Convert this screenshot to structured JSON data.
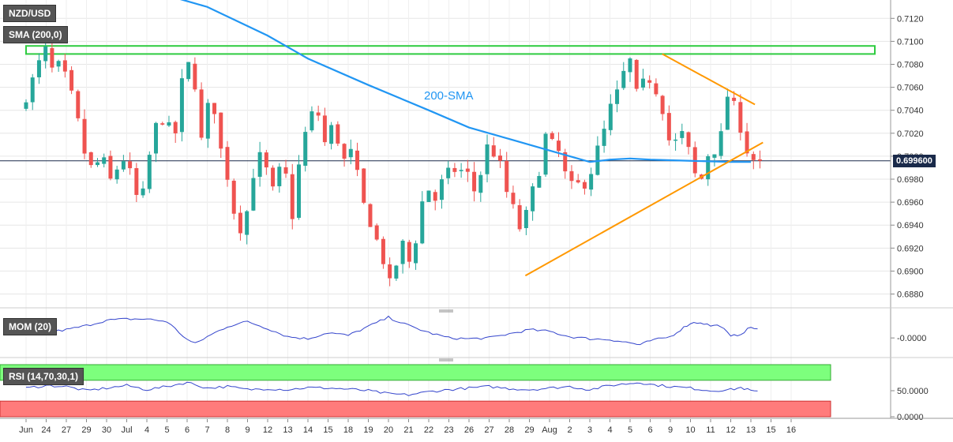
{
  "chart": {
    "panel_labels": {
      "main": "NZD/USD",
      "sma": "SMA (200,0)",
      "mom": "MOM (20)",
      "rsi": "RSI (14,70,30,1)"
    },
    "annotation": "200-SMA",
    "last_price_label": "0.699600",
    "colors": {
      "up": "#26a69a",
      "down": "#ef5350",
      "sma": "#2196f3",
      "trendline": "#ff9800",
      "resistance_box": "#2ecc40",
      "indicator": "#3344cc",
      "overbought": "#7dff7d",
      "oversold": "#ff7b7b"
    }
  },
  "chart_data": [
    {
      "type": "candlestick",
      "series_name": "NZD/USD",
      "y_ticks": [
        "0.6880",
        "0.6900",
        "0.6920",
        "0.6940",
        "0.6960",
        "0.6980",
        "0.7000",
        "0.7020",
        "0.7040",
        "0.7060",
        "0.7080",
        "0.7100",
        "0.7120"
      ],
      "x_ticks": [
        "Jun",
        "24",
        "27",
        "29",
        "30",
        "Jul",
        "4",
        "5",
        "6",
        "7",
        "8",
        "9",
        "12",
        "13",
        "14",
        "15",
        "18",
        "19",
        "20",
        "21",
        "22",
        "23",
        "26",
        "27",
        "28",
        "29",
        "Aug",
        "2",
        "3",
        "4",
        "5",
        "6",
        "9",
        "10",
        "11",
        "12",
        "13",
        "15",
        "16"
      ],
      "ylim": [
        0.6868,
        0.7136
      ],
      "last_price": 0.6996,
      "sma200": [
        [
          0,
          0.7165
        ],
        [
          6,
          0.7145
        ],
        [
          9,
          0.713
        ],
        [
          12,
          0.7105
        ],
        [
          14,
          0.7085
        ],
        [
          17,
          0.7062
        ],
        [
          20,
          0.704
        ],
        [
          22,
          0.7025
        ],
        [
          24,
          0.7015
        ],
        [
          26,
          0.7005
        ],
        [
          27,
          0.7
        ],
        [
          28,
          0.6995
        ],
        [
          29,
          0.6997
        ],
        [
          30,
          0.6998
        ],
        [
          31,
          0.6997
        ],
        [
          33,
          0.6996
        ],
        [
          35,
          0.6995
        ],
        [
          36,
          0.6995
        ]
      ],
      "levels": {
        "resistance_zone": [
          0.7089,
          0.7096
        ],
        "upper_trendline": {
          "from": [
            31.6,
            0.7089
          ],
          "to": [
            36.2,
            0.7045
          ]
        },
        "lower_trendline": {
          "from": [
            24.8,
            0.6896
          ],
          "to": [
            36.6,
            0.7012
          ]
        }
      },
      "anchors": [
        [
          0,
          0.704
        ],
        [
          0.7,
          0.7068
        ],
        [
          1.0,
          0.7082
        ],
        [
          1.3,
          0.7092
        ],
        [
          1.7,
          0.707
        ],
        [
          2.0,
          0.708
        ],
        [
          2.5,
          0.7058
        ],
        [
          3.0,
          0.7022
        ],
        [
          3.3,
          0.6997
        ],
        [
          3.6,
          0.6988
        ],
        [
          4.1,
          0.6999
        ],
        [
          4.5,
          0.6978
        ],
        [
          5.0,
          0.6995
        ],
        [
          5.3,
          0.7
        ],
        [
          5.6,
          0.6975
        ],
        [
          6.0,
          0.6955
        ],
        [
          6.3,
          0.6982
        ],
        [
          6.6,
          0.7018
        ],
        [
          7.0,
          0.7035
        ],
        [
          7.4,
          0.7025
        ],
        [
          7.6,
          0.701
        ],
        [
          7.9,
          0.7032
        ],
        [
          8.1,
          0.707
        ],
        [
          8.25,
          0.7088
        ],
        [
          8.4,
          0.7078
        ],
        [
          8.7,
          0.7065
        ],
        [
          9.0,
          0.701
        ],
        [
          9.3,
          0.704
        ],
        [
          9.6,
          0.705
        ],
        [
          10.0,
          0.7005
        ],
        [
          10.4,
          0.6978
        ],
        [
          10.6,
          0.6955
        ],
        [
          10.9,
          0.694
        ],
        [
          11.1,
          0.6935
        ],
        [
          11.4,
          0.6962
        ],
        [
          11.7,
          0.6995
        ],
        [
          12.0,
          0.7
        ],
        [
          12.3,
          0.6985
        ],
        [
          12.6,
          0.6968
        ],
        [
          12.8,
          0.698
        ],
        [
          13.1,
          0.6998
        ],
        [
          13.4,
          0.696
        ],
        [
          13.6,
          0.6945
        ],
        [
          13.8,
          0.6985
        ],
        [
          14.2,
          0.702
        ],
        [
          14.6,
          0.704
        ],
        [
          14.9,
          0.7035
        ],
        [
          15.2,
          0.7008
        ],
        [
          15.5,
          0.7025
        ],
        [
          15.8,
          0.7015
        ],
        [
          16.1,
          0.6995
        ],
        [
          16.4,
          0.7005
        ],
        [
          16.7,
          0.699
        ],
        [
          17.0,
          0.696
        ],
        [
          17.3,
          0.695
        ],
        [
          17.7,
          0.6928
        ],
        [
          18.0,
          0.6915
        ],
        [
          18.3,
          0.689
        ],
        [
          18.5,
          0.6885
        ],
        [
          18.8,
          0.6915
        ],
        [
          19.1,
          0.6925
        ],
        [
          19.4,
          0.6905
        ],
        [
          19.7,
          0.693
        ],
        [
          20.0,
          0.696
        ],
        [
          20.3,
          0.6972
        ],
        [
          20.6,
          0.696
        ],
        [
          20.9,
          0.6975
        ],
        [
          21.2,
          0.6982
        ],
        [
          21.5,
          0.699
        ],
        [
          21.8,
          0.6985
        ],
        [
          22.1,
          0.699
        ],
        [
          22.4,
          0.6978
        ],
        [
          22.7,
          0.6965
        ],
        [
          23.0,
          0.6995
        ],
        [
          23.2,
          0.7008
        ],
        [
          23.5,
          0.7005
        ],
        [
          23.9,
          0.699
        ],
        [
          24.2,
          0.6968
        ],
        [
          24.5,
          0.6955
        ],
        [
          24.7,
          0.694
        ],
        [
          25.0,
          0.6935
        ],
        [
          25.3,
          0.696
        ],
        [
          25.6,
          0.6975
        ],
        [
          25.9,
          0.6995
        ],
        [
          26.1,
          0.7018
        ],
        [
          26.4,
          0.701
        ],
        [
          26.7,
          0.7008
        ],
        [
          27.0,
          0.6988
        ],
        [
          27.3,
          0.6975
        ],
        [
          27.6,
          0.697
        ],
        [
          27.9,
          0.698
        ],
        [
          28.2,
          0.6975
        ],
        [
          28.5,
          0.6995
        ],
        [
          28.8,
          0.701
        ],
        [
          29.1,
          0.7025
        ],
        [
          29.4,
          0.7045
        ],
        [
          29.7,
          0.7055
        ],
        [
          29.9,
          0.7068
        ],
        [
          30.1,
          0.7075
        ],
        [
          30.3,
          0.7085
        ],
        [
          30.6,
          0.7052
        ],
        [
          30.9,
          0.706
        ],
        [
          31.2,
          0.707
        ],
        [
          31.5,
          0.7062
        ],
        [
          31.8,
          0.7052
        ],
        [
          32.1,
          0.703
        ],
        [
          32.4,
          0.7
        ],
        [
          32.7,
          0.702
        ],
        [
          33.0,
          0.7018
        ],
        [
          33.3,
          0.7
        ],
        [
          33.5,
          0.6985
        ],
        [
          33.8,
          0.6975
        ],
        [
          34.1,
          0.6998
        ],
        [
          34.4,
          0.701
        ],
        [
          34.7,
          0.7
        ],
        [
          34.9,
          0.7025
        ],
        [
          35.1,
          0.7055
        ],
        [
          35.4,
          0.7045
        ],
        [
          35.7,
          0.7035
        ],
        [
          36.0,
          0.701
        ],
        [
          36.2,
          0.7003
        ],
        [
          36.5,
          0.6996
        ]
      ]
    },
    {
      "type": "line",
      "series_name": "MOM (20)",
      "y_ticks": [
        "-0.0000"
      ],
      "points": [
        [
          0,
          0.6
        ],
        [
          1,
          0.55
        ],
        [
          2,
          0.62
        ],
        [
          3,
          0.72
        ],
        [
          4,
          0.85
        ],
        [
          5,
          0.88
        ],
        [
          6,
          0.88
        ],
        [
          7,
          0.82
        ],
        [
          8,
          0.38
        ],
        [
          8.4,
          0.28
        ],
        [
          9,
          0.45
        ],
        [
          10,
          0.7
        ],
        [
          11,
          0.82
        ],
        [
          12,
          0.65
        ],
        [
          13,
          0.45
        ],
        [
          14,
          0.4
        ],
        [
          15,
          0.55
        ],
        [
          16,
          0.48
        ],
        [
          17,
          0.7
        ],
        [
          18,
          0.92
        ],
        [
          19,
          0.72
        ],
        [
          20,
          0.55
        ],
        [
          21,
          0.42
        ],
        [
          22,
          0.4
        ],
        [
          23,
          0.42
        ],
        [
          24,
          0.52
        ],
        [
          25,
          0.62
        ],
        [
          26,
          0.58
        ],
        [
          27,
          0.45
        ],
        [
          28,
          0.4
        ],
        [
          29,
          0.38
        ],
        [
          30,
          0.3
        ],
        [
          30.5,
          0.25
        ],
        [
          31,
          0.35
        ],
        [
          32,
          0.45
        ],
        [
          32.5,
          0.62
        ],
        [
          33,
          0.78
        ],
        [
          33.5,
          0.8
        ],
        [
          34,
          0.72
        ],
        [
          34.5,
          0.72
        ],
        [
          35,
          0.45
        ],
        [
          35.5,
          0.52
        ],
        [
          36,
          0.68
        ],
        [
          36.5,
          0.62
        ]
      ]
    },
    {
      "type": "line",
      "series_name": "RSI (14,70,30,1)",
      "y_ticks": [
        "50.0000",
        "0.0000"
      ],
      "points": [
        [
          0,
          55
        ],
        [
          1,
          60
        ],
        [
          2,
          58
        ],
        [
          3,
          50
        ],
        [
          4,
          55
        ],
        [
          5,
          60
        ],
        [
          6,
          52
        ],
        [
          7,
          58
        ],
        [
          8,
          66
        ],
        [
          9,
          55
        ],
        [
          10,
          58
        ],
        [
          11,
          52
        ],
        [
          12,
          54
        ],
        [
          13,
          52
        ],
        [
          14,
          56
        ],
        [
          15,
          55
        ],
        [
          16,
          53
        ],
        [
          17,
          50
        ],
        [
          18,
          44
        ],
        [
          19,
          42
        ],
        [
          20,
          48
        ],
        [
          21,
          52
        ],
        [
          22,
          55
        ],
        [
          23,
          58
        ],
        [
          24,
          54
        ],
        [
          25,
          52
        ],
        [
          26,
          55
        ],
        [
          27,
          58
        ],
        [
          28,
          52
        ],
        [
          29,
          60
        ],
        [
          30,
          64
        ],
        [
          30.5,
          66
        ],
        [
          31,
          62
        ],
        [
          32,
          58
        ],
        [
          33,
          55
        ],
        [
          34,
          50
        ],
        [
          35,
          52
        ],
        [
          35.5,
          56
        ],
        [
          36,
          50
        ],
        [
          36.5,
          46
        ]
      ]
    }
  ]
}
